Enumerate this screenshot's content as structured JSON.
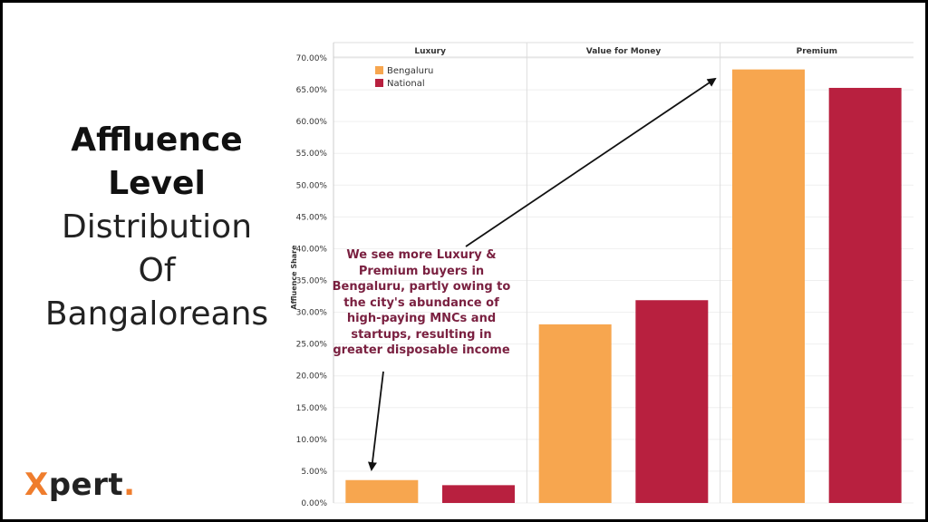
{
  "slide": {
    "title_line1": "Affluence",
    "title_line2": "Level",
    "title_line3": "Distribution",
    "title_line4": "Of",
    "title_line5": "Bangaloreans",
    "logo_text_x": "X",
    "logo_text_rest": "pert",
    "logo_dot": ".",
    "annotation": "We see more Luxury & Premium buyers in Bengaluru, partly owing to the city's abundance of high-paying MNCs and startups, resulting in greater disposable income"
  },
  "colors": {
    "bengaluru": "#f7a64f",
    "national": "#b8203f",
    "annotation_text": "#7a2040",
    "logo_accent": "#ef7d2d"
  },
  "chart_data": {
    "type": "bar",
    "categories": [
      "Luxury",
      "Value for Money",
      "Premium"
    ],
    "series": [
      {
        "name": "Bengaluru",
        "values": [
          3.6,
          28.1,
          68.2
        ]
      },
      {
        "name": "National",
        "values": [
          2.8,
          31.9,
          65.3
        ]
      }
    ],
    "ylabel": "Affluence Share",
    "ylim": [
      0,
      70
    ],
    "yticks": [
      "0.00%",
      "5.00%",
      "10.00%",
      "15.00%",
      "20.00%",
      "25.00%",
      "30.00%",
      "35.00%",
      "40.00%",
      "45.00%",
      "50.00%",
      "55.00%",
      "60.00%",
      "65.00%",
      "70.00%"
    ],
    "legend_position": "top-left",
    "grid": true
  }
}
